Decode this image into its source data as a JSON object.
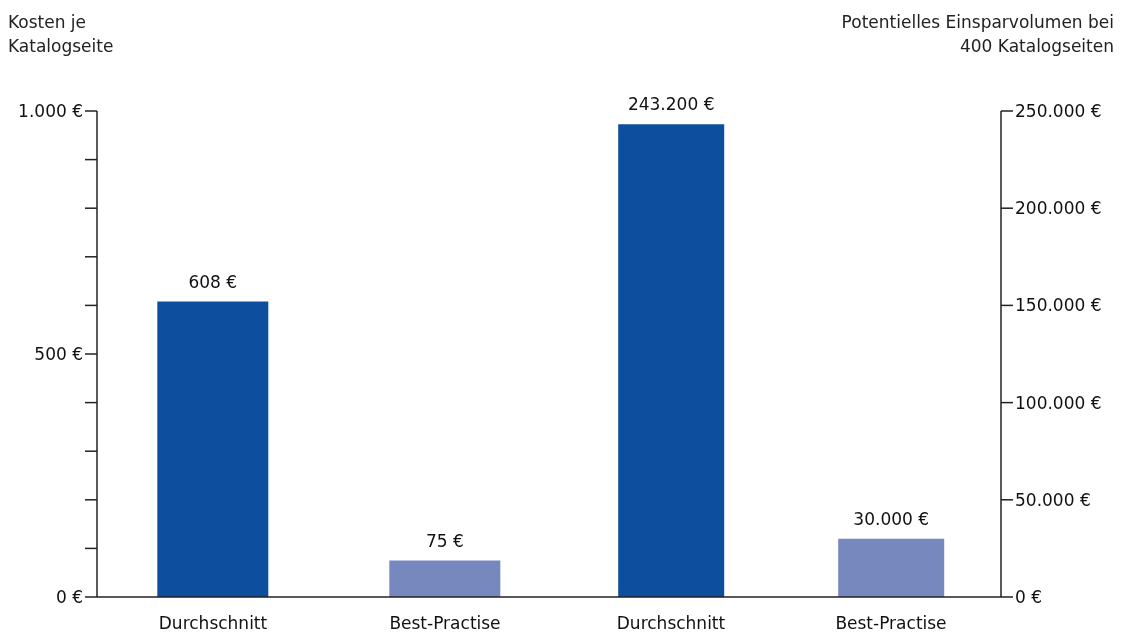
{
  "chart_data": [
    {
      "type": "bar",
      "ylabel": "Kosten je Katalogseite",
      "categories": [
        "Durchschnitt",
        "Best-Practise"
      ],
      "series": [
        {
          "values": [
            608,
            75
          ],
          "colors": [
            "#0d4f9e",
            "#7788bf"
          ],
          "value_labels": [
            "608 €",
            "75 €"
          ]
        }
      ],
      "ylim": [
        0,
        1000
      ],
      "yticks": [
        {
          "value": 0,
          "label": "0 €"
        },
        {
          "value": 100,
          "label": null
        },
        {
          "value": 200,
          "label": null
        },
        {
          "value": 300,
          "label": null
        },
        {
          "value": 400,
          "label": null
        },
        {
          "value": 500,
          "label": "500 €"
        },
        {
          "value": 600,
          "label": null
        },
        {
          "value": 700,
          "label": null
        },
        {
          "value": 800,
          "label": null
        },
        {
          "value": 900,
          "label": null
        },
        {
          "value": 1000,
          "label": "1.000 €"
        }
      ]
    },
    {
      "type": "bar",
      "y2label": "Potentielles Einsparvolumen bei 400 Katalogseiten",
      "categories": [
        "Durchschnitt",
        "Best-Practise"
      ],
      "series": [
        {
          "axis": "y2",
          "values": [
            243200,
            30000
          ],
          "colors": [
            "#0d4f9e",
            "#7788bf"
          ],
          "value_labels": [
            "243.200 €",
            "30.000 €"
          ]
        }
      ],
      "y2lim": [
        0,
        250000
      ],
      "y2ticks": [
        {
          "value": 0,
          "label": "0 €"
        },
        {
          "value": 50000,
          "label": "50.000 €"
        },
        {
          "value": 100000,
          "label": "100.000 €"
        },
        {
          "value": 150000,
          "label": "150.000 €"
        },
        {
          "value": 200000,
          "label": "200.000 €"
        },
        {
          "value": 250000,
          "label": "250.000 €"
        }
      ]
    }
  ]
}
